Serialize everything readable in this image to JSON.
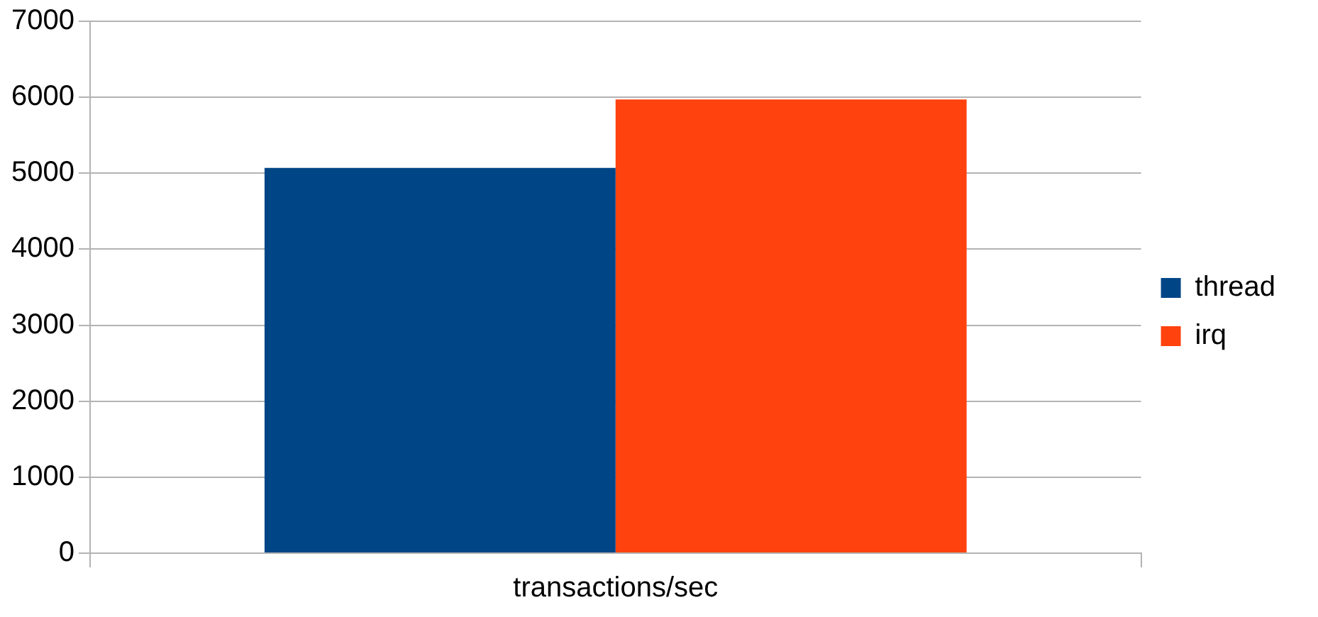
{
  "chart_data": {
    "type": "bar",
    "categories": [
      "transactions/sec"
    ],
    "series": [
      {
        "name": "thread",
        "color": "#004586",
        "values": [
          5070
        ]
      },
      {
        "name": "irq",
        "color": "#ff420e",
        "values": [
          5970
        ]
      }
    ],
    "ylim": [
      0,
      7000
    ],
    "yticks": [
      0,
      1000,
      2000,
      3000,
      4000,
      5000,
      6000,
      7000
    ],
    "grid": "y",
    "legend": "right"
  }
}
